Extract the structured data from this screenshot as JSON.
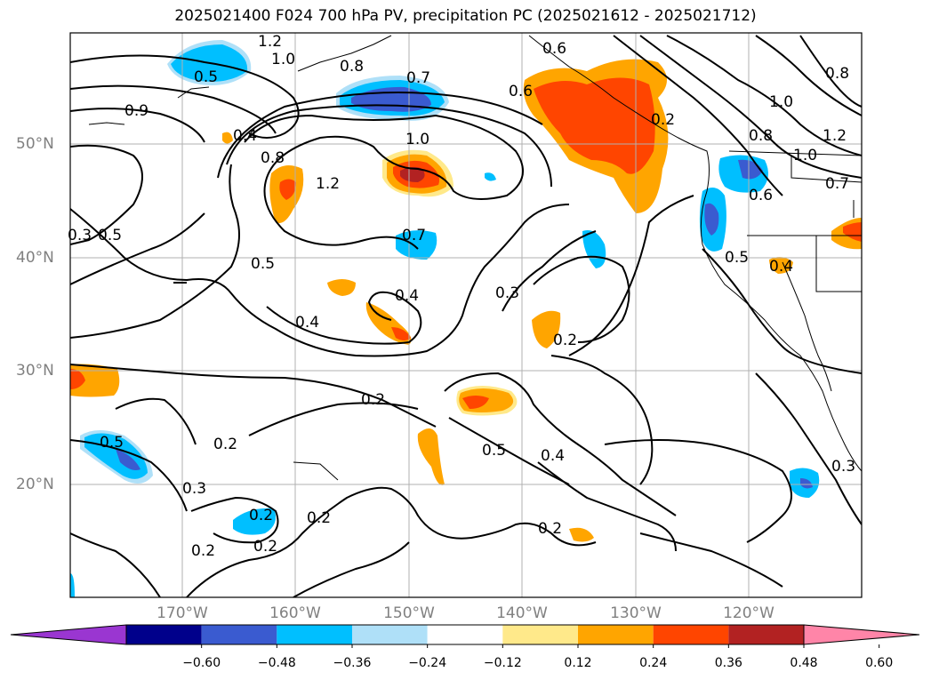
{
  "title": "2025021400 F024 700 hPa PV, precipitation PC (2025021612 - 2025021712)",
  "lat_labels": [
    "50°N",
    "40°N",
    "30°N",
    "20°N"
  ],
  "lon_labels": [
    "170°W",
    "160°W",
    "150°W",
    "140°W",
    "130°W",
    "120°W"
  ],
  "contour_labels": [
    "1.2",
    "1.0",
    "0.8",
    "0.5",
    "0.9",
    "0.7",
    "0.6",
    "0.4",
    "0.8",
    "1.2",
    "1.0",
    "0.7",
    "0.5",
    "0.5",
    "0.4",
    "0.4",
    "0.3",
    "0.2",
    "0.6",
    "0.5",
    "0.2",
    "0.2",
    "0.5",
    "0.4",
    "0.2",
    "0.3",
    "0.2",
    "0.2",
    "0.2",
    "0.2",
    "0.3",
    "1.0",
    "0.8",
    "1.2",
    "1.0",
    "0.7",
    "0.8",
    "0.6",
    "0.5",
    "0.4",
    "0.2",
    "0.3"
  ],
  "colorbar": {
    "labels": [
      "−0.60",
      "−0.48",
      "−0.36",
      "−0.24",
      "−0.12",
      "0.12",
      "0.24",
      "0.36",
      "0.48",
      "0.60"
    ],
    "colors": [
      "#9a36d1",
      "#00008b",
      "#3a5bd0",
      "#00bfff",
      "#afe0f8",
      "#ffffff",
      "#ffe98a",
      "#ffa500",
      "#ff4500",
      "#b22222",
      "#ff85a8"
    ]
  }
}
